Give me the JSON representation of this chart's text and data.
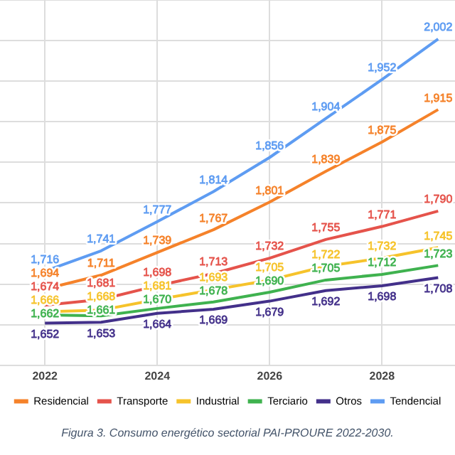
{
  "chart_data": {
    "type": "line",
    "x": [
      2022,
      2023,
      2024,
      2025,
      2026,
      2027,
      2028,
      2029
    ],
    "series": [
      {
        "name": "Residencial",
        "color": "#f5822a",
        "values": [
          1694,
          1711,
          1739,
          1767,
          1801,
          1839,
          1875,
          1915
        ],
        "value_labels": [
          "1,694",
          "1,711",
          "1,739",
          "1,767",
          "1,801",
          "1,839",
          "1,875",
          "1,915"
        ]
      },
      {
        "name": "Transporte",
        "color": "#e5534b",
        "values": [
          1674,
          1681,
          1698,
          1713,
          1732,
          1755,
          1771,
          1790
        ],
        "value_labels": [
          "1,674",
          "1,681",
          "1,698",
          "1,713",
          "1,732",
          "1,755",
          "1,771",
          "1,790"
        ]
      },
      {
        "name": "Industrial",
        "color": "#f6c32b",
        "values": [
          1666,
          1668,
          1681,
          1693,
          1705,
          1722,
          1732,
          1745
        ],
        "value_labels": [
          "1,666",
          "1,668",
          "1,681",
          "1,693",
          "1,705",
          "1,722",
          "1,732",
          "1,745"
        ]
      },
      {
        "name": "Terciario",
        "color": "#3fb24f",
        "values": [
          1662,
          1661,
          1670,
          1678,
          1690,
          1705,
          1712,
          1723
        ],
        "value_labels": [
          "1,662",
          "1,661",
          "1,670",
          "1,678",
          "1,690",
          "1,705",
          "1,712",
          "1,723"
        ]
      },
      {
        "name": "Otros",
        "color": "#43308a",
        "values": [
          1652,
          1653,
          1664,
          1669,
          1679,
          1692,
          1698,
          1708
        ],
        "value_labels": [
          "1,652",
          "1,653",
          "1,664",
          "1,669",
          "1,679",
          "1,692",
          "1,698",
          "1,708"
        ]
      },
      {
        "name": "Tendencial",
        "color": "#5e9cf2",
        "values": [
          1716,
          1741,
          1777,
          1814,
          1856,
          1904,
          1952,
          2002
        ],
        "value_labels": [
          "1,716",
          "1,741",
          "1,777",
          "1,814",
          "1,856",
          "1,904",
          "1,952",
          "2,002"
        ]
      }
    ],
    "xlim": [
      2021.2,
      2029.3
    ],
    "xticks": [
      2022,
      2024,
      2026,
      2028
    ],
    "tick_labels": "x",
    "grid": true,
    "legend": "bottom",
    "marker": "none",
    "line_style": "solid",
    "annotations": [
      "Figura 3. Consumo energético sectorial PAI-PROURE 2022-2030."
    ]
  }
}
